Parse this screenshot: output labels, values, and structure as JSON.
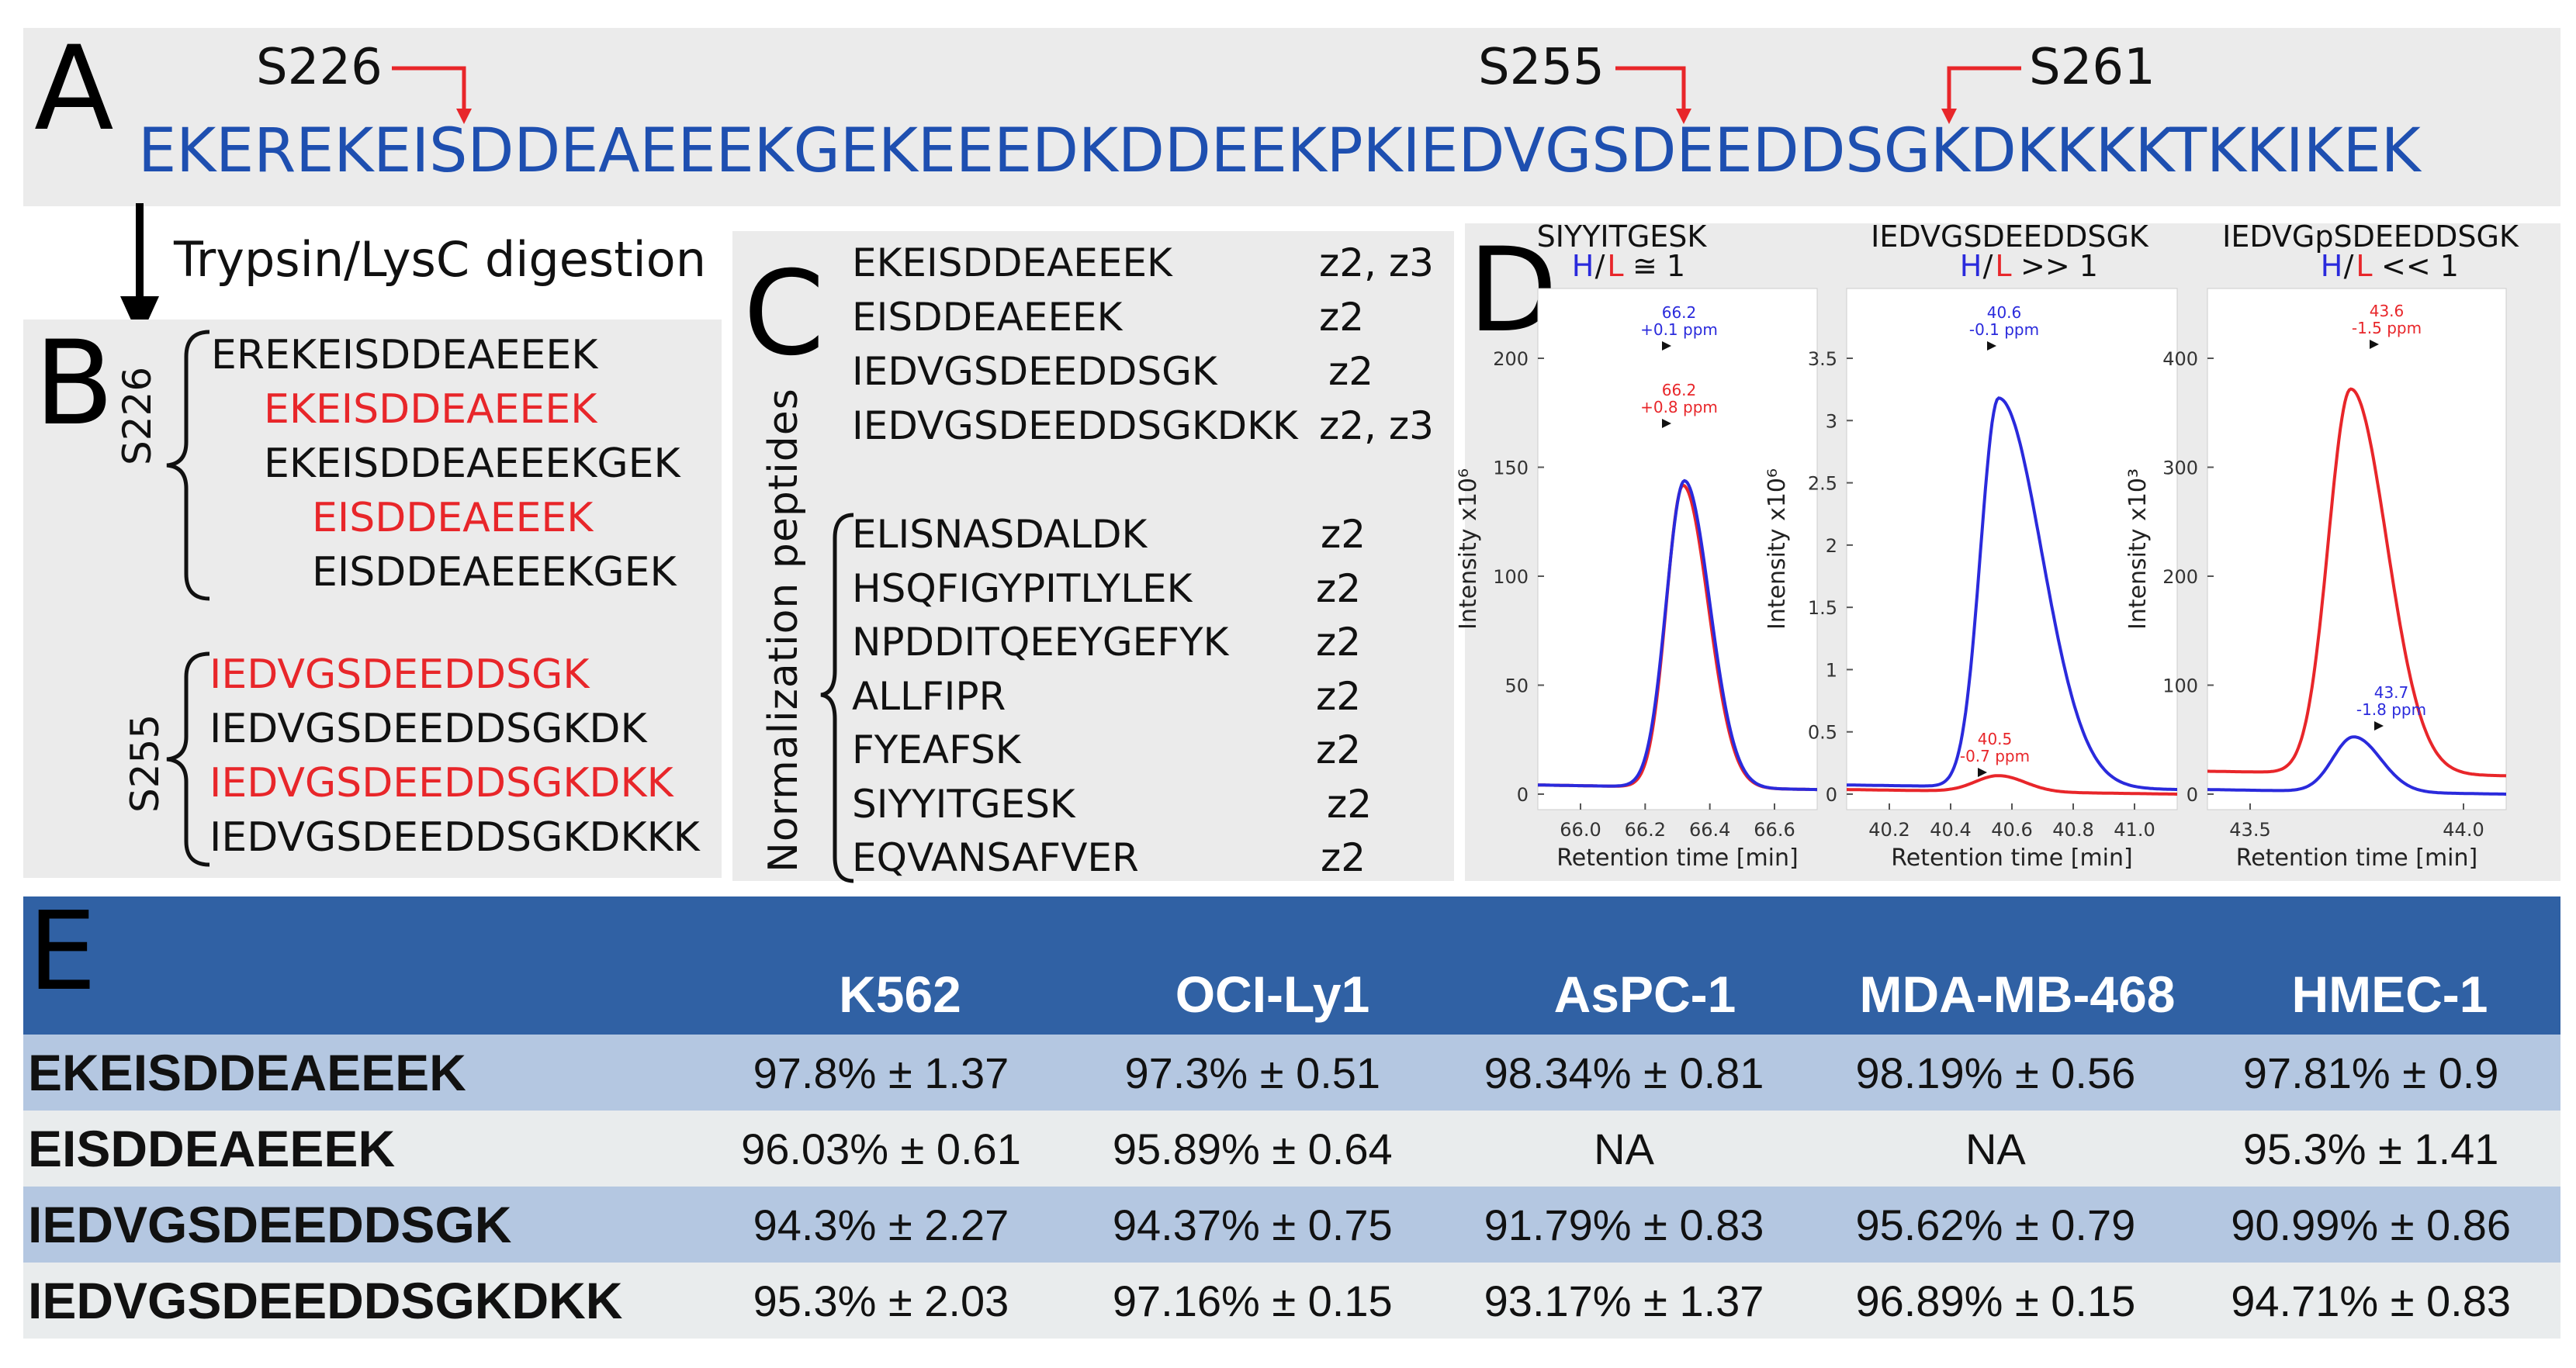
{
  "panel_a": {
    "label": "A",
    "sequence": "EKEREKEISDDEAEEEKGEKEEEDKDDEEKPKIEDVGSDEEDDSGKDKKKKTKKIKEK",
    "sites": [
      "S226",
      "S255",
      "S261"
    ]
  },
  "digestion_label": "Trypsin/LysC digestion",
  "panel_b": {
    "label": "B",
    "group1_label": "S226",
    "group1": [
      {
        "text": "EREKEISDDEAEEEK",
        "color": "black"
      },
      {
        "text": "EKEISDDEAEEEK",
        "color": "red"
      },
      {
        "text": "EKEISDDEAEEEKGEK",
        "color": "black"
      },
      {
        "text": "EISDDEAEEEK",
        "color": "red"
      },
      {
        "text": "EISDDEAEEEKGEK",
        "color": "black"
      }
    ],
    "group2_label": "S255",
    "group2": [
      {
        "text": "IEDVGSDEEDDSGK",
        "color": "red"
      },
      {
        "text": "IEDVGSDEEDDSGKDK",
        "color": "black"
      },
      {
        "text": "IEDVGSDEEDDSGKDKK",
        "color": "red"
      },
      {
        "text": "IEDVGSDEEDDSGKDKKK",
        "color": "black"
      }
    ]
  },
  "panel_c": {
    "label": "C",
    "targets": [
      {
        "pep": "EKEISDDEAEEEK",
        "z": "z2, z3"
      },
      {
        "pep": "EISDDEAEEEK",
        "z": "z2"
      },
      {
        "pep": "IEDVGSDEEDDSGK",
        "z": "z2"
      },
      {
        "pep": "IEDVGSDEEDDSGKDKK",
        "z": "z2, z3"
      }
    ],
    "norm_label": "Normalization peptides",
    "norm": [
      {
        "pep": "ELISNASDALDK",
        "z": "z2"
      },
      {
        "pep": "HSQFIGYPITLYLEK",
        "z": "z2"
      },
      {
        "pep": "NPDDITQEEYGEFYK",
        "z": "z2"
      },
      {
        "pep": "ALLFIPR",
        "z": "z2"
      },
      {
        "pep": "FYEAFSK",
        "z": "z2"
      },
      {
        "pep": "SIYYITGESK",
        "z": "z2"
      },
      {
        "pep": "EQVANSAFVER",
        "z": "z2"
      }
    ]
  },
  "panel_d": {
    "label": "D",
    "h": "H",
    "slash": "/",
    "l": "L",
    "plots": [
      {
        "title": "SIYYITGESK",
        "ratio": "≅ 1",
        "ylabel": "Intensity x10⁶",
        "xlabel": "Retention time [min]",
        "yticks": [
          "0",
          "50",
          "100",
          "150",
          "200"
        ],
        "xticks": [
          "66.0",
          "66.2",
          "66.4",
          "66.6"
        ],
        "blue_ann": [
          "66.2",
          "+0.1 ppm"
        ],
        "red_ann": [
          "66.2",
          "+0.8 ppm"
        ]
      },
      {
        "title": "IEDVGSDEEDDSGK",
        "ratio": ">> 1",
        "ylabel": "Intensity x10⁶",
        "xlabel": "Retention time [min]",
        "yticks": [
          "0",
          "0.5",
          "1",
          "1.5",
          "2",
          "2.5",
          "3",
          "3.5"
        ],
        "xticks": [
          "40.2",
          "40.4",
          "40.6",
          "40.8",
          "41.0"
        ],
        "blue_ann": [
          "40.6",
          "-0.1 ppm"
        ],
        "red_ann": [
          "40.5",
          "-0.7 ppm"
        ]
      },
      {
        "title": "IEDVGpSDEEDDSGK",
        "ratio": "<< 1",
        "ylabel": "Intensity x10³",
        "xlabel": "Retention time [min]",
        "yticks": [
          "0",
          "100",
          "200",
          "300",
          "400"
        ],
        "xticks": [
          "43.5",
          "44.0"
        ],
        "blue_ann": [
          "43.7",
          "-1.8 ppm"
        ],
        "red_ann": [
          "43.6",
          "-1.5 ppm"
        ]
      }
    ],
    "colors": {
      "heavy": "#2a2adc",
      "light": "#e8262a"
    }
  },
  "panel_e": {
    "label": "E",
    "columns": [
      "K562",
      "OCI-Ly1",
      "AsPC-1",
      "MDA-MB-468",
      "HMEC-1"
    ],
    "rows": [
      {
        "peptide": "EKEISDDEAEEEK",
        "values": [
          "97.8% ± 1.37",
          "97.3% ± 0.51",
          "98.34% ± 0.81",
          "98.19% ± 0.56",
          "97.81% ± 0.9"
        ]
      },
      {
        "peptide": "EISDDEAEEEK",
        "values": [
          "96.03% ± 0.61",
          "95.89% ± 0.64",
          "NA",
          "NA",
          "95.3% ± 1.41"
        ]
      },
      {
        "peptide": "IEDVGSDEEDDSGK",
        "values": [
          "94.3% ± 2.27",
          "94.37% ± 0.75",
          "91.79% ± 0.83",
          "95.62% ± 0.79",
          "90.99% ± 0.86"
        ]
      },
      {
        "peptide": "IEDVGSDEEDDSGKDKK",
        "values": [
          "95.3% ± 2.03",
          "97.16% ± 0.15",
          "93.17% ± 1.37",
          "96.89% ± 0.15",
          "94.71% ± 0.83"
        ]
      }
    ],
    "header_color": "#3061a4",
    "row_colors": [
      "#b4c7e1",
      "#e9eced"
    ]
  }
}
